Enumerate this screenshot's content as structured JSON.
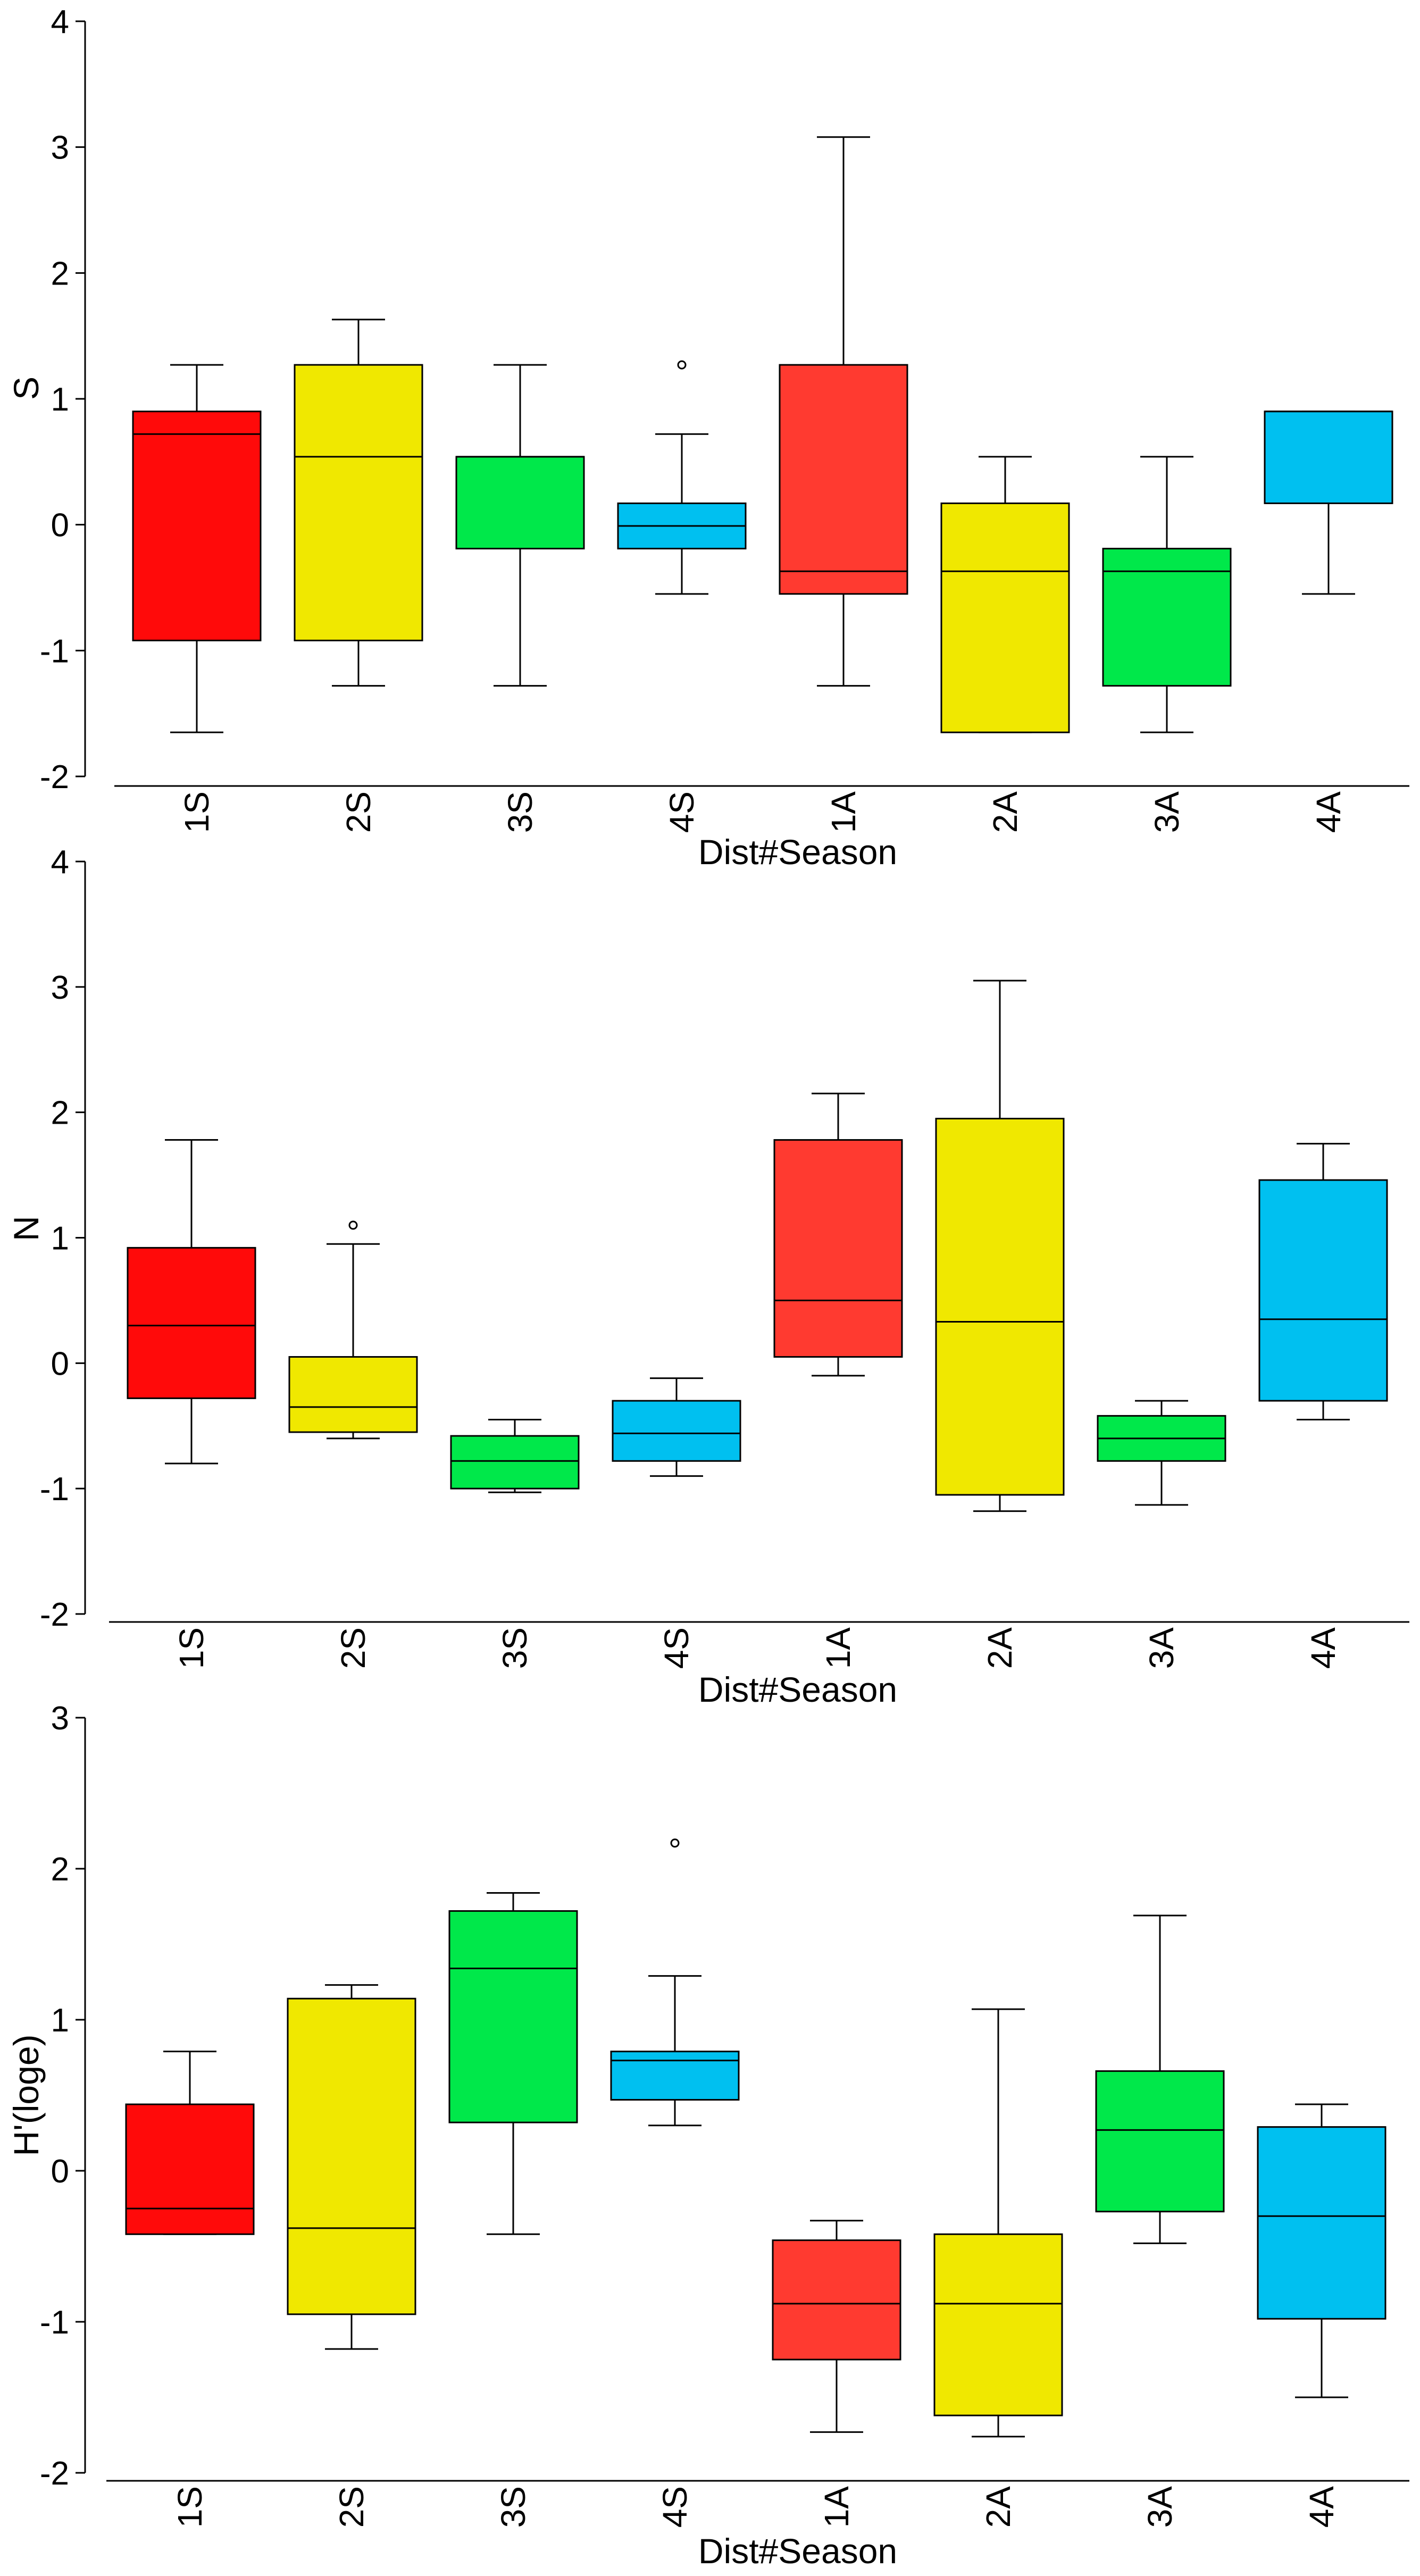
{
  "chart_data": [
    {
      "type": "box",
      "ylabel": "S",
      "xlabel": "Dist#Season",
      "ylim": [
        -2,
        4
      ],
      "yticks": [
        "-2",
        "-1",
        "0",
        "1",
        "2",
        "3",
        "4"
      ],
      "categories": [
        "1S",
        "2S",
        "3S",
        "4S",
        "1A",
        "2A",
        "3A",
        "4A"
      ],
      "colors": [
        "#ff0a0a",
        "#f0e800",
        "#00e84a",
        "#00c0f0",
        "#ff3a30",
        "#f0e800",
        "#00e84a",
        "#00c0f0"
      ],
      "boxes": [
        {
          "low": -1.65,
          "q1": -0.92,
          "median": 0.72,
          "q3": 0.9,
          "high": 1.27,
          "outliers": []
        },
        {
          "low": -1.28,
          "q1": -0.92,
          "median": 0.54,
          "q3": 1.27,
          "high": 1.63,
          "outliers": []
        },
        {
          "low": -1.28,
          "q1": -0.19,
          "median": 0.54,
          "q3": 0.54,
          "high": 1.27,
          "outliers": []
        },
        {
          "low": -0.55,
          "q1": -0.19,
          "median": -0.01,
          "q3": 0.17,
          "high": 0.72,
          "outliers": [
            1.27
          ]
        },
        {
          "low": -1.28,
          "q1": -0.55,
          "median": -0.37,
          "q3": 1.27,
          "high": 3.08,
          "outliers": []
        },
        {
          "low": -1.65,
          "q1": -1.65,
          "median": -0.37,
          "q3": 0.17,
          "high": 0.54,
          "outliers": []
        },
        {
          "low": -1.65,
          "q1": -1.28,
          "median": -0.37,
          "q3": -0.19,
          "high": 0.54,
          "outliers": []
        },
        {
          "low": -0.55,
          "q1": 0.17,
          "median": 0.9,
          "q3": 0.9,
          "high": 0.9,
          "outliers": []
        }
      ]
    },
    {
      "type": "box",
      "ylabel": "N",
      "xlabel": "Dist#Season",
      "ylim": [
        -2,
        4
      ],
      "yticks": [
        "-2",
        "-1",
        "0",
        "1",
        "2",
        "3",
        "4"
      ],
      "categories": [
        "1S",
        "2S",
        "3S",
        "4S",
        "1A",
        "2A",
        "3A",
        "4A"
      ],
      "colors": [
        "#ff0a0a",
        "#f0e800",
        "#00e84a",
        "#00c0f0",
        "#ff3a30",
        "#f0e800",
        "#00e84a",
        "#00c0f0"
      ],
      "boxes": [
        {
          "low": -0.8,
          "q1": -0.28,
          "median": 0.3,
          "q3": 0.92,
          "high": 1.78,
          "outliers": []
        },
        {
          "low": -0.6,
          "q1": -0.55,
          "median": -0.35,
          "q3": 0.05,
          "high": 0.95,
          "outliers": [
            1.1
          ]
        },
        {
          "low": -1.03,
          "q1": -1.0,
          "median": -0.78,
          "q3": -0.58,
          "high": -0.45,
          "outliers": []
        },
        {
          "low": -0.9,
          "q1": -0.78,
          "median": -0.56,
          "q3": -0.3,
          "high": -0.12,
          "outliers": []
        },
        {
          "low": -0.1,
          "q1": 0.05,
          "median": 0.5,
          "q3": 1.78,
          "high": 2.15,
          "outliers": []
        },
        {
          "low": -1.18,
          "q1": -1.05,
          "median": 0.33,
          "q3": 1.95,
          "high": 3.05,
          "outliers": []
        },
        {
          "low": -1.13,
          "q1": -0.78,
          "median": -0.6,
          "q3": -0.42,
          "high": -0.3,
          "outliers": []
        },
        {
          "low": -0.45,
          "q1": -0.3,
          "median": 0.35,
          "q3": 1.46,
          "high": 1.75,
          "outliers": []
        }
      ]
    },
    {
      "type": "box",
      "ylabel": "H'(loge)",
      "xlabel": "Dist#Season",
      "ylim": [
        -2,
        3
      ],
      "yticks": [
        "-2",
        "-1",
        "0",
        "1",
        "2",
        "3"
      ],
      "categories": [
        "1S",
        "2S",
        "3S",
        "4S",
        "1A",
        "2A",
        "3A",
        "4A"
      ],
      "colors": [
        "#ff0a0a",
        "#f0e800",
        "#00e84a",
        "#00c0f0",
        "#ff3a30",
        "#f0e800",
        "#00e84a",
        "#00c0f0"
      ],
      "boxes": [
        {
          "low": -0.42,
          "q1": -0.42,
          "median": -0.25,
          "q3": 0.44,
          "high": 0.79,
          "outliers": []
        },
        {
          "low": -1.18,
          "q1": -0.95,
          "median": -0.38,
          "q3": 1.14,
          "high": 1.23,
          "outliers": []
        },
        {
          "low": -0.42,
          "q1": 0.32,
          "median": 1.34,
          "q3": 1.72,
          "high": 1.84,
          "outliers": []
        },
        {
          "low": 0.3,
          "q1": 0.47,
          "median": 0.73,
          "q3": 0.79,
          "high": 1.29,
          "outliers": [
            2.17
          ]
        },
        {
          "low": -1.73,
          "q1": -1.25,
          "median": -0.88,
          "q3": -0.46,
          "high": -0.33,
          "outliers": []
        },
        {
          "low": -1.76,
          "q1": -1.62,
          "median": -0.88,
          "q3": -0.42,
          "high": 1.07,
          "outliers": []
        },
        {
          "low": -0.48,
          "q1": -0.27,
          "median": 0.27,
          "q3": 0.66,
          "high": 1.69,
          "outliers": []
        },
        {
          "low": -1.5,
          "q1": -0.98,
          "median": -0.3,
          "q3": 0.29,
          "high": 0.44,
          "outliers": []
        }
      ]
    }
  ]
}
